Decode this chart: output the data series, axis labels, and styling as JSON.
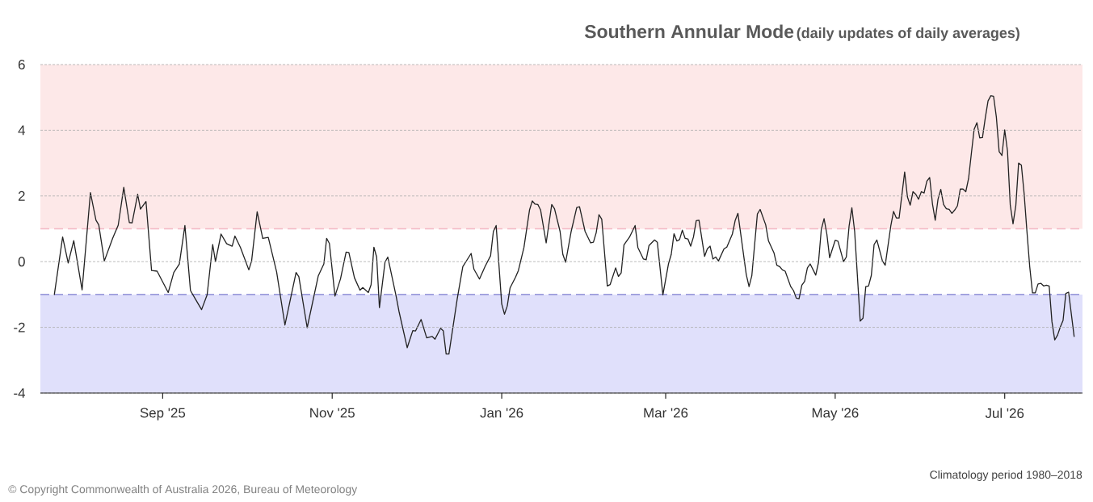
{
  "chart_data": {
    "type": "line",
    "title": "Southern Annular Mode",
    "subtitle": "(daily updates of daily averages)",
    "annotations": [
      "Climatology period 1980–2018",
      "© Copyright Commonwealth of Australia 2026, Bureau of Meteorology"
    ],
    "xlim": [
      "2025-07-19",
      "2026-07-29"
    ],
    "xticks": [
      {
        "value": "2025-09-01",
        "label": "Sep '25"
      },
      {
        "value": "2025-11-01",
        "label": "Nov '25"
      },
      {
        "value": "2026-01-01",
        "label": "Jan '26"
      },
      {
        "value": "2026-03-01",
        "label": "Mar '26"
      },
      {
        "value": "2026-05-01",
        "label": "May '26"
      },
      {
        "value": "2026-07-01",
        "label": "Jul '26"
      }
    ],
    "ylim": [
      -4,
      6
    ],
    "yticks": [
      -4,
      -2,
      0,
      2,
      4,
      6
    ],
    "grid": "y",
    "bands": [
      {
        "axis": "y",
        "from": 1,
        "to": 6,
        "color": "#fde8e8"
      },
      {
        "axis": "y",
        "from": -4,
        "to": -1,
        "color": "#e0e0fb"
      }
    ],
    "ref_lines": [
      {
        "axis": "y",
        "value": 1,
        "color": "#f4b8c4",
        "line_style": "dashed"
      },
      {
        "axis": "y",
        "value": -1,
        "color": "#9c9cdc",
        "line_style": "dashed"
      }
    ],
    "series": [
      {
        "color": "#222222",
        "x": [
          "2025-07-24",
          "2025-07-27",
          "2025-07-29",
          "2025-07-31",
          "2025-08-03",
          "2025-08-06",
          "2025-08-08",
          "2025-08-09",
          "2025-08-11",
          "2025-08-14",
          "2025-08-16",
          "2025-08-18",
          "2025-08-20",
          "2025-08-21",
          "2025-08-23",
          "2025-08-24",
          "2025-08-26",
          "2025-08-28",
          "2025-08-30",
          "2025-09-03",
          "2025-09-05",
          "2025-09-07",
          "2025-09-09",
          "2025-09-11",
          "2025-09-13",
          "2025-09-15",
          "2025-09-17",
          "2025-09-19",
          "2025-09-20",
          "2025-09-22",
          "2025-09-24",
          "2025-09-26",
          "2025-09-27",
          "2025-09-29",
          "2025-10-02",
          "2025-10-03",
          "2025-10-05",
          "2025-10-07",
          "2025-10-09",
          "2025-10-12",
          "2025-10-15",
          "2025-10-19",
          "2025-10-20",
          "2025-10-23",
          "2025-10-27",
          "2025-10-29",
          "2025-10-30",
          "2025-10-31",
          "2025-11-02",
          "2025-11-04",
          "2025-11-06",
          "2025-11-07",
          "2025-11-09",
          "2025-11-11",
          "2025-11-12",
          "2025-11-14",
          "2025-11-15",
          "2025-11-16",
          "2025-11-17",
          "2025-11-18",
          "2025-11-20",
          "2025-11-21",
          "2025-11-24",
          "2025-11-25",
          "2025-11-28",
          "2025-11-30",
          "2025-12-01",
          "2025-12-03",
          "2025-12-05",
          "2025-12-07",
          "2025-12-08",
          "2025-12-10",
          "2025-12-11",
          "2025-12-12",
          "2025-12-13",
          "2025-12-16",
          "2025-12-18",
          "2025-12-21",
          "2025-12-22",
          "2025-12-24",
          "2025-12-26",
          "2025-12-28",
          "2025-12-29",
          "2025-12-30",
          "2026-01-01",
          "2026-01-02",
          "2026-01-03",
          "2026-01-04",
          "2026-01-06",
          "2026-01-07",
          "2026-01-09",
          "2026-01-11",
          "2026-01-12",
          "2026-01-13",
          "2026-01-14",
          "2026-01-15",
          "2026-01-17",
          "2026-01-19",
          "2026-01-20",
          "2026-01-22",
          "2026-01-23",
          "2026-01-24",
          "2026-01-26",
          "2026-01-28",
          "2026-01-29",
          "2026-01-31",
          "2026-02-02",
          "2026-02-03",
          "2026-02-04",
          "2026-02-05",
          "2026-02-06",
          "2026-02-08",
          "2026-02-09",
          "2026-02-11",
          "2026-02-12",
          "2026-02-13",
          "2026-02-14",
          "2026-02-16",
          "2026-02-18",
          "2026-02-19",
          "2026-02-21",
          "2026-02-22",
          "2026-02-23",
          "2026-02-25",
          "2026-02-26",
          "2026-02-28",
          "2026-03-02",
          "2026-03-03",
          "2026-03-04",
          "2026-03-05",
          "2026-03-06",
          "2026-03-07",
          "2026-03-08",
          "2026-03-09",
          "2026-03-10",
          "2026-03-11",
          "2026-03-12",
          "2026-03-13",
          "2026-03-15",
          "2026-03-16",
          "2026-03-17",
          "2026-03-18",
          "2026-03-19",
          "2026-03-20",
          "2026-03-22",
          "2026-03-23",
          "2026-03-25",
          "2026-03-26",
          "2026-03-27",
          "2026-03-30",
          "2026-03-31",
          "2026-04-01",
          "2026-04-03",
          "2026-04-04",
          "2026-04-06",
          "2026-04-07",
          "2026-04-09",
          "2026-04-10",
          "2026-04-11",
          "2026-04-12",
          "2026-04-13",
          "2026-04-15",
          "2026-04-16",
          "2026-04-17",
          "2026-04-18",
          "2026-04-19",
          "2026-04-20",
          "2026-04-21",
          "2026-04-22",
          "2026-04-24",
          "2026-04-25",
          "2026-04-26",
          "2026-04-27",
          "2026-04-28",
          "2026-04-29",
          "2026-05-01",
          "2026-05-02",
          "2026-05-04",
          "2026-05-05",
          "2026-05-06",
          "2026-05-07",
          "2026-05-08",
          "2026-05-10",
          "2026-05-11",
          "2026-05-12",
          "2026-05-13",
          "2026-05-14",
          "2026-05-15",
          "2026-05-16",
          "2026-05-17",
          "2026-05-18",
          "2026-05-19",
          "2026-05-21",
          "2026-05-22",
          "2026-05-23",
          "2026-05-24",
          "2026-05-26",
          "2026-05-27",
          "2026-05-28",
          "2026-05-29",
          "2026-05-30",
          "2026-05-31",
          "2026-06-01",
          "2026-06-02",
          "2026-06-03",
          "2026-06-04",
          "2026-06-05",
          "2026-06-06",
          "2026-06-07",
          "2026-06-08",
          "2026-06-09",
          "2026-06-10",
          "2026-06-11",
          "2026-06-12",
          "2026-06-13",
          "2026-06-14",
          "2026-06-15",
          "2026-06-16",
          "2026-06-17",
          "2026-06-18",
          "2026-06-19",
          "2026-06-20",
          "2026-06-21",
          "2026-06-22",
          "2026-06-23",
          "2026-06-24",
          "2026-06-25",
          "2026-06-26",
          "2026-06-27",
          "2026-06-28",
          "2026-06-29",
          "2026-06-30",
          "2026-07-01",
          "2026-07-02",
          "2026-07-03",
          "2026-07-04",
          "2026-07-05",
          "2026-07-06",
          "2026-07-07",
          "2026-07-08",
          "2026-07-09",
          "2026-07-10",
          "2026-07-11",
          "2026-07-12",
          "2026-07-13",
          "2026-07-14",
          "2026-07-15",
          "2026-07-16",
          "2026-07-17",
          "2026-07-18",
          "2026-07-19",
          "2026-07-20",
          "2026-07-21",
          "2026-07-22",
          "2026-07-23",
          "2026-07-24",
          "2026-07-26"
        ],
        "values": [
          -1.01,
          0.75,
          -0.04,
          0.64,
          -0.86,
          2.1,
          1.26,
          1.12,
          0.02,
          0.71,
          1.11,
          2.26,
          1.19,
          1.18,
          2.05,
          1.6,
          1.83,
          -0.27,
          -0.29,
          -0.94,
          -0.33,
          -0.07,
          1.1,
          -0.88,
          -1.17,
          -1.46,
          -1.01,
          0.52,
          0.0,
          0.84,
          0.55,
          0.47,
          0.78,
          0.43,
          -0.25,
          0.02,
          1.52,
          0.71,
          0.74,
          -0.31,
          -1.93,
          -0.33,
          -0.46,
          -2.01,
          -0.43,
          -0.07,
          0.71,
          0.55,
          -1.05,
          -0.52,
          0.29,
          0.28,
          -0.49,
          -0.87,
          -0.79,
          -0.94,
          -0.7,
          0.44,
          0.14,
          -1.4,
          -0.02,
          0.14,
          -1.05,
          -1.5,
          -2.62,
          -2.1,
          -2.11,
          -1.76,
          -2.32,
          -2.28,
          -2.36,
          -2.03,
          -2.11,
          -2.81,
          -2.81,
          -1.13,
          -0.15,
          0.25,
          -0.23,
          -0.53,
          -0.15,
          0.18,
          0.92,
          1.1,
          -1.29,
          -1.6,
          -1.35,
          -0.8,
          -0.47,
          -0.27,
          0.43,
          1.57,
          1.85,
          1.75,
          1.74,
          1.57,
          0.57,
          1.74,
          1.61,
          0.92,
          0.22,
          -0.02,
          0.92,
          1.65,
          1.67,
          0.92,
          0.57,
          0.59,
          0.88,
          1.43,
          1.29,
          -0.74,
          -0.7,
          -0.19,
          -0.45,
          -0.34,
          0.51,
          0.75,
          1.1,
          0.43,
          0.08,
          0.06,
          0.49,
          0.66,
          0.59,
          -1.01,
          -0.07,
          0.22,
          0.85,
          0.63,
          0.67,
          0.96,
          0.71,
          0.69,
          0.47,
          0.75,
          1.25,
          1.26,
          0.16,
          0.39,
          0.47,
          0.08,
          0.14,
          0.02,
          0.39,
          0.44,
          0.84,
          1.25,
          1.47,
          -0.39,
          -0.76,
          -0.43,
          1.45,
          1.59,
          1.12,
          0.63,
          0.26,
          -0.11,
          -0.15,
          -0.25,
          -0.29,
          -0.76,
          -0.88,
          -1.11,
          -1.13,
          -0.72,
          -0.6,
          -0.19,
          -0.07,
          -0.41,
          -0.02,
          0.98,
          1.31,
          0.84,
          0.12,
          0.65,
          0.62,
          0.0,
          0.14,
          1.08,
          1.64,
          0.92,
          -1.81,
          -1.72,
          -0.76,
          -0.74,
          -0.42,
          0.52,
          0.66,
          0.34,
          0.02,
          -0.11,
          1.08,
          1.53,
          1.33,
          1.33,
          2.73,
          1.97,
          1.72,
          2.13,
          2.05,
          1.9,
          2.13,
          2.09,
          2.45,
          2.56,
          1.76,
          1.26,
          1.9,
          2.2,
          1.74,
          1.61,
          1.59,
          1.47,
          1.57,
          1.7,
          2.21,
          2.21,
          2.13,
          2.53,
          3.29,
          4.03,
          4.23,
          3.77,
          3.78,
          4.37,
          4.89,
          5.05,
          5.03,
          4.4,
          3.35,
          3.23,
          4.01,
          3.37,
          1.72,
          1.15,
          1.71,
          3.0,
          2.94,
          2.06,
          0.92,
          -0.15,
          -0.95,
          -0.95,
          -0.68,
          -0.66,
          -0.74,
          -0.72,
          -0.74,
          -1.83,
          -2.38,
          -2.24,
          -1.99,
          -1.79,
          -0.97,
          -0.93,
          -2.29
        ]
      }
    ]
  }
}
